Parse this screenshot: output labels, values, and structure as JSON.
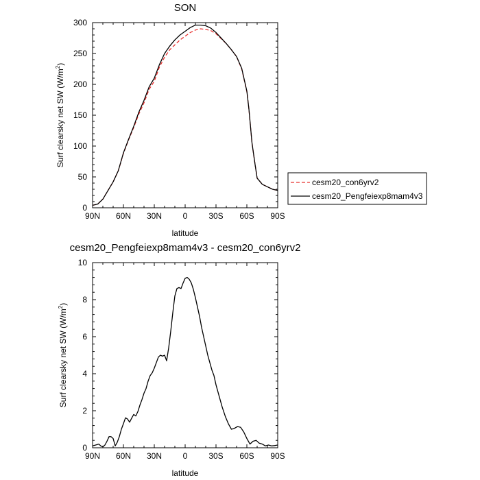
{
  "chart_data": [
    {
      "type": "line",
      "title": "SON",
      "xlabel": "latitude",
      "ylabel": "Surf clearsky net SW (W/m",
      "ylabel_superscript": "2",
      "ylabel_suffix": ")",
      "xlim": [
        90,
        -90
      ],
      "ylim": [
        0,
        300
      ],
      "xticks": [
        90,
        60,
        30,
        0,
        -30,
        -60,
        -90
      ],
      "xtick_labels": [
        "90N",
        "60N",
        "30N",
        "0",
        "30S",
        "60S",
        "90S"
      ],
      "yticks": [
        0,
        50,
        100,
        150,
        200,
        250,
        300
      ],
      "ytick_labels": [
        "0",
        "50",
        "100",
        "150",
        "200",
        "250",
        "300"
      ],
      "legend": "right",
      "series": [
        {
          "name": "cesm20_con6yrv2",
          "color": "#e8312f",
          "dash": "dashed",
          "x": [
            90,
            85,
            80,
            75,
            70,
            65,
            60,
            55,
            50,
            45,
            40,
            35,
            30,
            25,
            20,
            15,
            10,
            5,
            0,
            -5,
            -10,
            -15,
            -20,
            -25,
            -30,
            -35,
            -40,
            -45,
            -50,
            -55,
            -60,
            -62,
            -65,
            -68,
            -70,
            -75,
            -80,
            -85,
            -90
          ],
          "y": [
            4,
            6,
            14,
            28,
            42,
            60,
            88,
            110,
            130,
            152,
            170,
            192,
            205,
            228,
            244,
            256,
            264,
            272,
            278,
            284,
            288,
            290,
            289,
            287,
            282,
            274,
            266,
            256,
            245,
            225,
            188,
            160,
            105,
            70,
            48,
            38,
            34,
            30,
            28
          ]
        },
        {
          "name": "cesm20_Pengfeiexp8mam4v3",
          "color": "#000000",
          "dash": "solid",
          "x": [
            90,
            85,
            80,
            75,
            70,
            65,
            60,
            55,
            50,
            45,
            40,
            35,
            30,
            25,
            20,
            15,
            10,
            5,
            0,
            -5,
            -10,
            -15,
            -20,
            -25,
            -30,
            -35,
            -40,
            -45,
            -50,
            -55,
            -60,
            -62,
            -65,
            -68,
            -70,
            -75,
            -80,
            -85,
            -90
          ],
          "y": [
            4,
            6,
            14,
            28,
            42,
            60,
            89,
            111,
            132,
            155,
            174,
            196,
            210,
            232,
            250,
            262,
            272,
            280,
            286,
            292,
            296,
            296,
            295,
            291,
            284,
            275,
            266,
            256,
            245,
            226,
            189,
            160,
            105,
            70,
            48,
            38,
            34,
            30,
            28
          ]
        }
      ]
    },
    {
      "type": "line",
      "title": "cesm20_Pengfeiexp8mam4v3 - cesm20_con6yrv2",
      "xlabel": "latitude",
      "ylabel": "Surf clearsky net SW (W/m",
      "ylabel_superscript": "2",
      "ylabel_suffix": ")",
      "xlim": [
        90,
        -90
      ],
      "ylim": [
        0,
        10
      ],
      "xticks": [
        90,
        60,
        30,
        0,
        -30,
        -60,
        -90
      ],
      "xtick_labels": [
        "90N",
        "60N",
        "30N",
        "0",
        "30S",
        "60S",
        "90S"
      ],
      "yticks": [
        0,
        2,
        4,
        6,
        8,
        10
      ],
      "ytick_labels": [
        "0",
        "2",
        "4",
        "6",
        "8",
        "10"
      ],
      "series": [
        {
          "color": "#000000",
          "dash": "solid",
          "x": [
            90,
            87,
            84,
            82,
            80,
            78,
            76,
            74,
            72,
            70,
            68,
            66,
            64,
            62,
            60,
            58,
            56,
            54,
            52,
            50,
            48,
            46,
            44,
            42,
            40,
            38,
            36,
            34,
            32,
            30,
            28,
            26,
            24,
            22,
            20,
            18,
            16,
            14,
            12,
            10,
            8,
            6,
            4,
            2,
            0,
            -2,
            -4,
            -6,
            -8,
            -10,
            -12,
            -14,
            -16,
            -18,
            -20,
            -22,
            -24,
            -26,
            -28,
            -30,
            -33,
            -36,
            -39,
            -42,
            -45,
            -48,
            -51,
            -54,
            -57,
            -60,
            -63,
            -66,
            -69,
            -72,
            -75,
            -78,
            -81,
            -84,
            -87,
            -90
          ],
          "y": [
            0.1,
            0.15,
            0.2,
            0.1,
            0.05,
            0.15,
            0.35,
            0.6,
            0.6,
            0.5,
            0.1,
            0.3,
            0.6,
            1.0,
            1.3,
            1.62,
            1.55,
            1.38,
            1.6,
            1.8,
            1.72,
            1.95,
            2.3,
            2.6,
            2.95,
            3.2,
            3.6,
            3.9,
            4.05,
            4.3,
            4.6,
            4.9,
            5.0,
            4.95,
            5.0,
            4.7,
            5.4,
            6.3,
            7.3,
            8.2,
            8.6,
            8.65,
            8.6,
            8.9,
            9.15,
            9.2,
            9.1,
            8.9,
            8.55,
            8.1,
            7.6,
            7.1,
            6.5,
            6.0,
            5.5,
            5.0,
            4.6,
            4.2,
            3.9,
            3.4,
            2.8,
            2.2,
            1.7,
            1.3,
            1.0,
            1.05,
            1.15,
            1.1,
            0.85,
            0.5,
            0.2,
            0.35,
            0.4,
            0.25,
            0.2,
            0.1,
            0.15,
            0.1,
            0.12,
            0.15
          ]
        }
      ]
    }
  ]
}
